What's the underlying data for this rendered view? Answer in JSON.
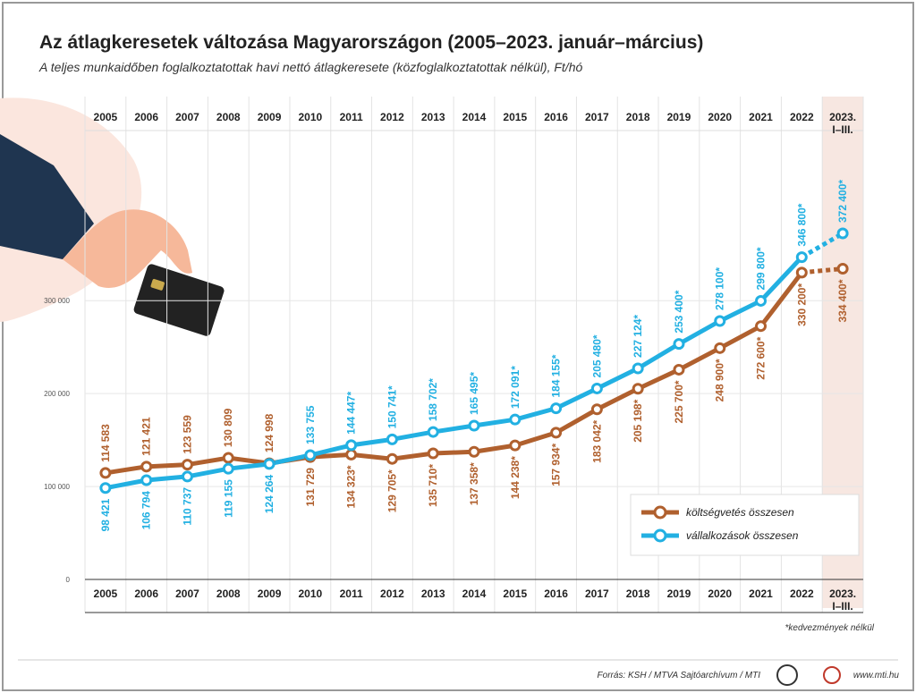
{
  "chart_data": {
    "type": "line",
    "title": "Az átlagkeresetek változása Magyarországon (2005–2023. január–március)",
    "subtitle": "A teljes munkaidőben foglalkoztatottak havi nettó átlagkeresete (közfoglalkoztatottak nélkül), Ft/hó",
    "categories": [
      "2005",
      "2006",
      "2007",
      "2008",
      "2009",
      "2010",
      "2011",
      "2012",
      "2013",
      "2014",
      "2015",
      "2016",
      "2017",
      "2018",
      "2019",
      "2020",
      "2021",
      "2022",
      "2023. I–III."
    ],
    "series": [
      {
        "name": "költségvetés összesen",
        "color": "#b0602e",
        "values": [
          114583,
          121421,
          123559,
          130809,
          124998,
          131729,
          134323,
          129705,
          135710,
          137358,
          144238,
          157934,
          183042,
          205198,
          225700,
          248900,
          272600,
          330200,
          334400
        ],
        "value_labels": [
          "114 583",
          "121 421",
          "123 559",
          "130 809",
          "124 998",
          "131 729",
          "134 323*",
          "129 705*",
          "135 710*",
          "137 358*",
          "144 238*",
          "157 934*",
          "183 042*",
          "205 198*",
          "225 700*",
          "248 900*",
          "272 600*",
          "330 200*",
          "334 400*"
        ]
      },
      {
        "name": "vállalkozások összesen",
        "color": "#22b0e2",
        "values": [
          98421,
          106794,
          110737,
          119155,
          124264,
          133755,
          144447,
          150741,
          158702,
          165495,
          172091,
          184155,
          205480,
          227124,
          253400,
          278100,
          299800,
          346800,
          372400
        ],
        "value_labels": [
          "98 421",
          "106 794",
          "110 737",
          "119 155",
          "124 264",
          "133 755",
          "144 447*",
          "150 741*",
          "158 702*",
          "165 495*",
          "172 091*",
          "184 155*",
          "205 480*",
          "227 124*",
          "253 400*",
          "278 100*",
          "299 800*",
          "346 800*",
          "372 400*"
        ]
      }
    ],
    "ylim": [
      0,
      510000
    ],
    "yticks": [
      0,
      {
        "value": 100000,
        "label": "100 000"
      },
      {
        "value": 200000,
        "label": "200 000"
      },
      {
        "value": 300000,
        "label": "300 000"
      }
    ],
    "grid": true,
    "last_segment_dashed": true,
    "legend": "lower right",
    "note": "*kedvezmények nélkül",
    "source": "Forrás: KSH / MTVA Sajtóarchívum / MTI",
    "website": "www.mti.hu"
  }
}
